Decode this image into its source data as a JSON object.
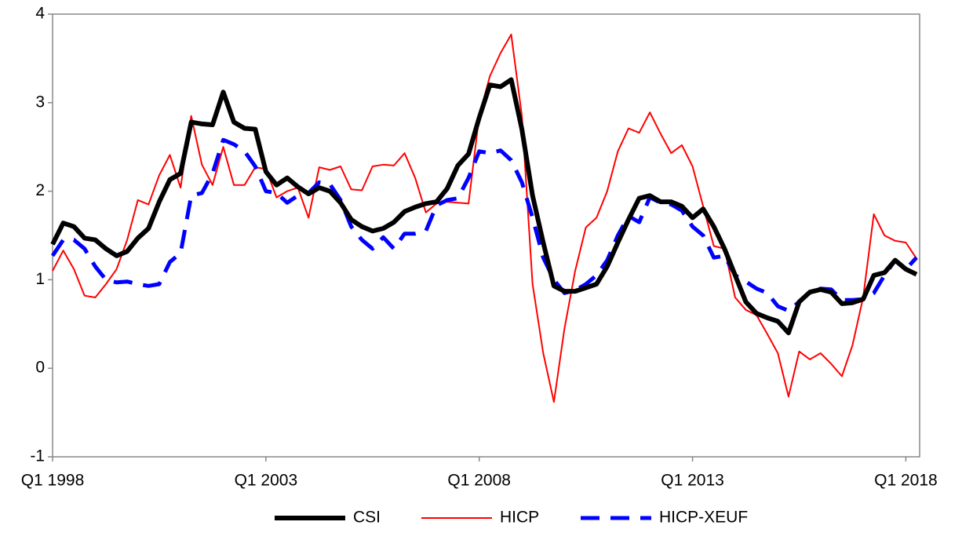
{
  "chart_data": {
    "type": "line",
    "categories": [
      "Q1 1998",
      null,
      null,
      null,
      null,
      null,
      null,
      null,
      null,
      null,
      null,
      null,
      null,
      null,
      null,
      null,
      null,
      null,
      null,
      null,
      "Q1 2003",
      null,
      null,
      null,
      null,
      null,
      null,
      null,
      null,
      null,
      null,
      null,
      null,
      null,
      null,
      null,
      null,
      null,
      null,
      null,
      "Q1 2008",
      null,
      null,
      null,
      null,
      null,
      null,
      null,
      null,
      null,
      null,
      null,
      null,
      null,
      null,
      null,
      null,
      null,
      null,
      null,
      "Q1 2013",
      null,
      null,
      null,
      null,
      null,
      null,
      null,
      null,
      null,
      null,
      null,
      null,
      null,
      null,
      null,
      null,
      null,
      null,
      null,
      "Q1 2018",
      null
    ],
    "series": [
      {
        "name": "CSI",
        "color": "#000000",
        "values": [
          1.4,
          1.64,
          1.6,
          1.47,
          1.45,
          1.35,
          1.27,
          1.32,
          1.47,
          1.58,
          1.88,
          2.13,
          2.2,
          2.78,
          2.76,
          2.75,
          3.12,
          2.78,
          2.71,
          2.7,
          2.22,
          2.07,
          2.15,
          2.05,
          1.97,
          2.04,
          2.0,
          1.87,
          1.68,
          1.6,
          1.55,
          1.58,
          1.65,
          1.77,
          1.82,
          1.86,
          1.88,
          2.03,
          2.29,
          2.42,
          2.83,
          3.2,
          3.18,
          3.26,
          2.7,
          1.95,
          1.42,
          0.93,
          0.87,
          0.87,
          0.91,
          0.95,
          1.15,
          1.42,
          1.68,
          1.92,
          1.95,
          1.88,
          1.88,
          1.83,
          1.7,
          1.8,
          1.6,
          1.35,
          1.05,
          0.75,
          0.62,
          0.57,
          0.53,
          0.4,
          0.75,
          0.86,
          0.89,
          0.86,
          0.73,
          0.74,
          0.78,
          1.05,
          1.08,
          1.22,
          1.12,
          1.06
        ]
      },
      {
        "name": "HICP",
        "color": "#ff0000",
        "values": [
          1.1,
          1.33,
          1.12,
          0.82,
          0.8,
          0.95,
          1.12,
          1.45,
          1.9,
          1.85,
          2.18,
          2.41,
          2.04,
          2.85,
          2.3,
          2.07,
          2.5,
          2.07,
          2.07,
          2.27,
          2.25,
          1.93,
          2.0,
          2.04,
          1.7,
          2.27,
          2.24,
          2.28,
          2.02,
          2.01,
          2.28,
          2.3,
          2.29,
          2.43,
          2.15,
          1.76,
          1.86,
          1.88,
          1.87,
          1.86,
          2.85,
          3.3,
          3.56,
          3.77,
          2.85,
          0.95,
          0.17,
          -0.38,
          0.45,
          1.1,
          1.59,
          1.7,
          2.0,
          2.45,
          2.71,
          2.66,
          2.89,
          2.65,
          2.43,
          2.52,
          2.28,
          1.83,
          1.38,
          1.35,
          0.8,
          0.66,
          0.6,
          0.39,
          0.17,
          -0.32,
          0.19,
          0.1,
          0.17,
          0.05,
          -0.09,
          0.26,
          0.8,
          1.74,
          1.5,
          1.44,
          1.42,
          1.24
        ]
      },
      {
        "name": "HICP-XEUF",
        "color": "#0000ff",
        "values": [
          1.27,
          1.45,
          1.45,
          1.35,
          1.15,
          1.0,
          0.97,
          0.98,
          0.95,
          0.93,
          0.95,
          1.2,
          1.3,
          1.95,
          1.98,
          2.2,
          2.58,
          2.53,
          2.45,
          2.28,
          2.0,
          1.98,
          1.87,
          1.95,
          1.98,
          2.1,
          2.08,
          1.9,
          1.6,
          1.45,
          1.35,
          1.48,
          1.35,
          1.52,
          1.52,
          1.55,
          1.84,
          1.9,
          1.92,
          2.15,
          2.45,
          2.43,
          2.46,
          2.35,
          2.1,
          1.7,
          1.25,
          1.0,
          0.85,
          0.88,
          0.95,
          1.05,
          1.22,
          1.5,
          1.72,
          1.65,
          1.93,
          1.87,
          1.85,
          1.78,
          1.6,
          1.5,
          1.25,
          1.27,
          1.05,
          0.98,
          0.9,
          0.85,
          0.7,
          0.65,
          0.75,
          0.86,
          0.9,
          0.89,
          0.77,
          0.77,
          0.78,
          0.85,
          1.05,
          1.22,
          1.12,
          1.25
        ]
      }
    ],
    "ylim": [
      -1,
      4
    ],
    "yticks": [
      -1,
      0,
      1,
      2,
      3,
      4
    ],
    "grid": false,
    "legend": "bottom"
  }
}
